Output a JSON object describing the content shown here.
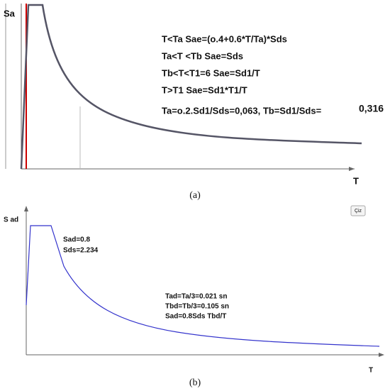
{
  "panel_a": {
    "y_label": "Sa",
    "x_label": "T",
    "equations": [
      "T<Ta  Sae=(o.4+0.6*T/Ta)*Sds",
      "Ta<T <Tb  Sae=Sds",
      "Tb<T<T1=6 Sae=Sd1/T",
      "T>T1    Sae=Sd1*T1/T",
      "Ta=o.2.Sd1/Sds=0,063, Tb=Sd1/Sds="
    ],
    "tb_value": "0,316",
    "caption": "(a)"
  },
  "panel_b": {
    "y_label": "S ad",
    "x_label": "T",
    "button": "Çiz",
    "notes_top": [
      "Sad=0.8",
      "Sds=2.234"
    ],
    "notes_mid": [
      "Tad=Ta/3=0.021 sn",
      "Tbd=Tb/3=0.105 sn",
      "Sad=0.8Sds Tbd/T"
    ],
    "caption": "(b)"
  }
}
